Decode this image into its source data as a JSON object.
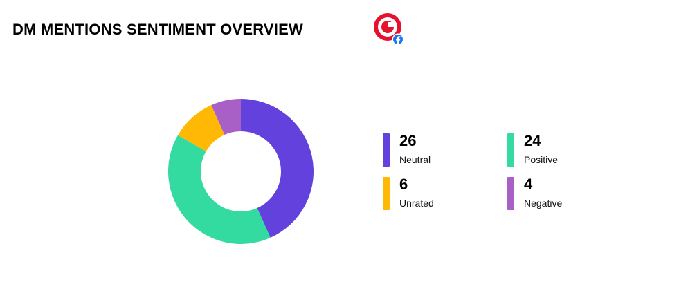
{
  "header": {
    "title": "DM MENTIONS SENTIMENT OVERVIEW",
    "logo_icon": "brand-target-icon",
    "network_icon": "facebook-icon",
    "logo_color": "#E8112D",
    "network_color": "#1877F2"
  },
  "chart_data": {
    "type": "pie",
    "donut": true,
    "title": "",
    "categories": [
      "Neutral",
      "Positive",
      "Unrated",
      "Negative"
    ],
    "values": [
      26,
      24,
      6,
      4
    ],
    "colors": [
      "#6241DC",
      "#33DBA1",
      "#FFB905",
      "#A860C7"
    ],
    "legend_placement": "right"
  },
  "legend": {
    "items": [
      {
        "value": "26",
        "label": "Neutral",
        "color": "#6241DC"
      },
      {
        "value": "24",
        "label": "Positive",
        "color": "#33DBA1"
      },
      {
        "value": "6",
        "label": "Unrated",
        "color": "#FFB905"
      },
      {
        "value": "4",
        "label": "Negative",
        "color": "#A860C7"
      }
    ]
  }
}
